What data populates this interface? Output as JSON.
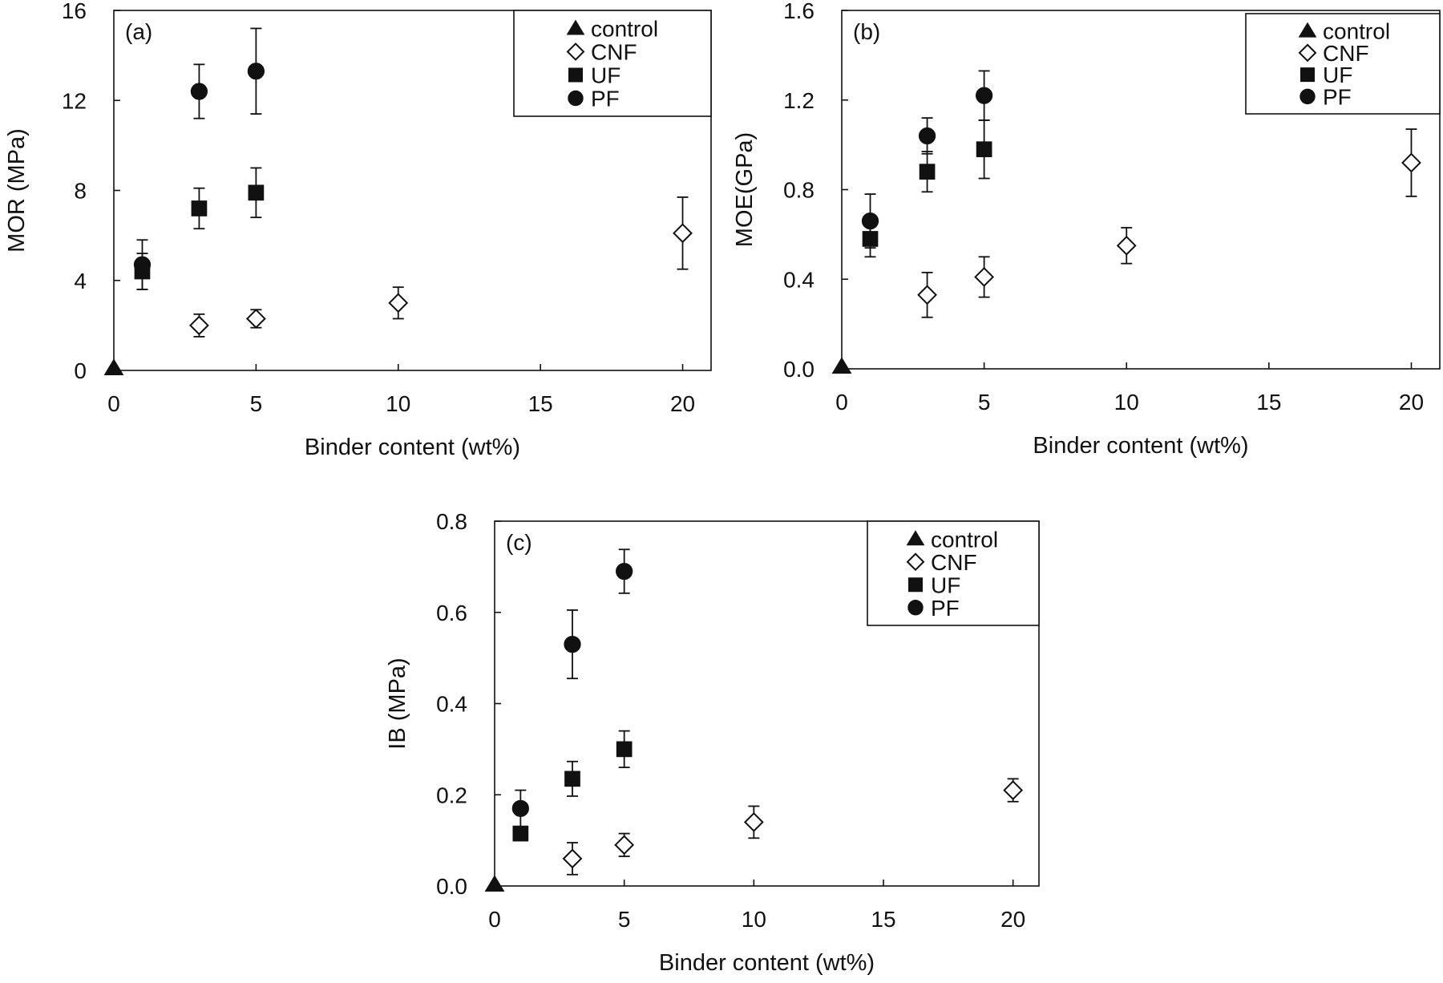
{
  "figure": {
    "colors": {
      "ink": "#111111",
      "background": "#ffffff",
      "open_marker_fill": "#ffffff"
    }
  },
  "chart_data": [
    {
      "type": "scatter",
      "panel_label": "(a)",
      "xlabel": "Binder content (wt%)",
      "ylabel": "MOR (MPa)",
      "xlim": [
        0,
        21
      ],
      "ylim": [
        0,
        16
      ],
      "xticks": [
        0,
        5,
        10,
        15,
        20
      ],
      "xtick_labels": [
        "0",
        "5",
        "10",
        "15",
        "20"
      ],
      "yticks": [
        0,
        4,
        8,
        12,
        16
      ],
      "ytick_labels": [
        "0",
        "4",
        "8",
        "12",
        "16"
      ],
      "grid": false,
      "legend_position": "top-right",
      "series": [
        {
          "name": "control",
          "marker": "triangle-filled",
          "points": [
            {
              "x": 0,
              "y": 0.1,
              "err": 0
            }
          ]
        },
        {
          "name": "CNF",
          "marker": "diamond-open",
          "points": [
            {
              "x": 3,
              "y": 2.0,
              "err": 0.5
            },
            {
              "x": 5,
              "y": 2.3,
              "err": 0.4
            },
            {
              "x": 10,
              "y": 3.0,
              "err": 0.7
            },
            {
              "x": 20,
              "y": 6.1,
              "err": 1.6
            }
          ]
        },
        {
          "name": "UF",
          "marker": "square-filled",
          "points": [
            {
              "x": 1,
              "y": 4.4,
              "err": 0.8
            },
            {
              "x": 3,
              "y": 7.2,
              "err": 0.9
            },
            {
              "x": 5,
              "y": 7.9,
              "err": 1.1
            }
          ]
        },
        {
          "name": "PF",
          "marker": "circle-filled",
          "points": [
            {
              "x": 1,
              "y": 4.7,
              "err": 1.1
            },
            {
              "x": 3,
              "y": 12.4,
              "err": 1.2
            },
            {
              "x": 5,
              "y": 13.3,
              "err": 1.9
            }
          ]
        }
      ]
    },
    {
      "type": "scatter",
      "panel_label": "(b)",
      "xlabel": "Binder content (wt%)",
      "ylabel": "MOE(GPa)",
      "xlim": [
        0,
        21
      ],
      "ylim": [
        0,
        1.6
      ],
      "xticks": [
        0,
        5,
        10,
        15,
        20
      ],
      "xtick_labels": [
        "0",
        "5",
        "10",
        "15",
        "20"
      ],
      "yticks": [
        0,
        0.4,
        0.8,
        1.2,
        1.6
      ],
      "ytick_labels": [
        "0.0",
        "0.4",
        "0.8",
        "1.2",
        "1.6"
      ],
      "grid": false,
      "legend_position": "top-right",
      "series": [
        {
          "name": "control",
          "marker": "triangle-filled",
          "points": [
            {
              "x": 0,
              "y": 0.01,
              "err": 0
            }
          ]
        },
        {
          "name": "CNF",
          "marker": "diamond-open",
          "points": [
            {
              "x": 3,
              "y": 0.33,
              "err": 0.1
            },
            {
              "x": 5,
              "y": 0.41,
              "err": 0.09
            },
            {
              "x": 10,
              "y": 0.55,
              "err": 0.08
            },
            {
              "x": 20,
              "y": 0.92,
              "err": 0.15
            }
          ]
        },
        {
          "name": "UF",
          "marker": "square-filled",
          "points": [
            {
              "x": 1,
              "y": 0.58,
              "err": 0.08
            },
            {
              "x": 3,
              "y": 0.88,
              "err": 0.09
            },
            {
              "x": 5,
              "y": 0.98,
              "err": 0.13
            }
          ]
        },
        {
          "name": "PF",
          "marker": "circle-filled",
          "points": [
            {
              "x": 1,
              "y": 0.66,
              "err": 0.12
            },
            {
              "x": 3,
              "y": 1.04,
              "err": 0.08
            },
            {
              "x": 5,
              "y": 1.22,
              "err": 0.11
            }
          ]
        }
      ]
    },
    {
      "type": "scatter",
      "panel_label": "(c)",
      "xlabel": "Binder content (wt%)",
      "ylabel": "IB (MPa)",
      "xlim": [
        0,
        21
      ],
      "ylim": [
        0,
        0.8
      ],
      "xticks": [
        0,
        5,
        10,
        15,
        20
      ],
      "xtick_labels": [
        "0",
        "5",
        "10",
        "15",
        "20"
      ],
      "yticks": [
        0,
        0.2,
        0.4,
        0.6,
        0.8
      ],
      "ytick_labels": [
        "0.0",
        "0.2",
        "0.4",
        "0.6",
        "0.8"
      ],
      "grid": false,
      "legend_position": "top-right",
      "series": [
        {
          "name": "control",
          "marker": "triangle-filled",
          "points": [
            {
              "x": 0,
              "y": 0.003,
              "err": 0
            }
          ]
        },
        {
          "name": "CNF",
          "marker": "diamond-open",
          "points": [
            {
              "x": 3,
              "y": 0.06,
              "err": 0.035
            },
            {
              "x": 5,
              "y": 0.09,
              "err": 0.025
            },
            {
              "x": 10,
              "y": 0.14,
              "err": 0.035
            },
            {
              "x": 20,
              "y": 0.21,
              "err": 0.025
            }
          ]
        },
        {
          "name": "UF",
          "marker": "square-filled",
          "points": [
            {
              "x": 1,
              "y": 0.115,
              "err": 0
            },
            {
              "x": 3,
              "y": 0.235,
              "err": 0.038
            },
            {
              "x": 5,
              "y": 0.3,
              "err": 0.04
            }
          ]
        },
        {
          "name": "PF",
          "marker": "circle-filled",
          "points": [
            {
              "x": 1,
              "y": 0.17,
              "err": 0.04
            },
            {
              "x": 3,
              "y": 0.53,
              "err": 0.075
            },
            {
              "x": 5,
              "y": 0.69,
              "err": 0.048
            }
          ]
        }
      ]
    }
  ]
}
